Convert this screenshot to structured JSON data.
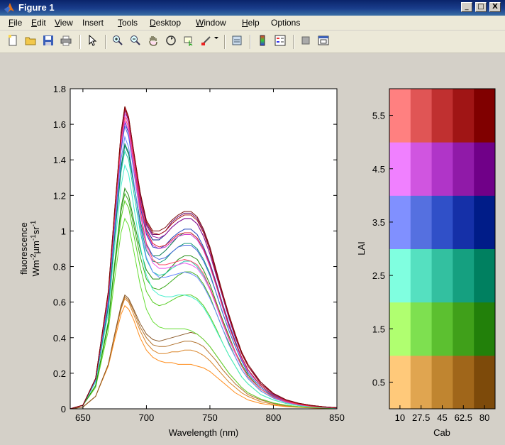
{
  "window": {
    "title": "Figure 1",
    "controls": [
      "_",
      "□",
      "X"
    ]
  },
  "menu": [
    {
      "label": "File",
      "u": "F",
      "rest": "ile"
    },
    {
      "label": "Edit",
      "u": "E",
      "rest": "dit"
    },
    {
      "label": "View",
      "u": "V",
      "rest": "iew"
    },
    {
      "label": "Insert",
      "u": "",
      "rest": "Insert"
    },
    {
      "label": "Tools",
      "u": "T",
      "rest": "ools"
    },
    {
      "label": "Desktop",
      "u": "D",
      "rest": "esktop"
    },
    {
      "label": "Window",
      "u": "W",
      "rest": "indow"
    },
    {
      "label": "Help",
      "u": "H",
      "rest": "elp"
    },
    {
      "label": "Options",
      "u": "",
      "rest": "Options"
    }
  ],
  "toolbar": [
    "new-file-icon",
    "open-folder-icon",
    "save-icon",
    "print-icon",
    "pointer-icon",
    "zoom-in-icon",
    "zoom-out-icon",
    "pan-hand-icon",
    "rotate-3d-icon",
    "data-cursor-icon",
    "brush-icon",
    "dropdown-arrow-icon",
    "link-plot-icon",
    "colorbar-icon",
    "legend-icon",
    "hide-plot-tools-icon",
    "show-plot-tools-icon"
  ],
  "chart_data": [
    {
      "type": "line",
      "xlabel": "Wavelength (nm)",
      "ylabel_line1": "fluorescence",
      "ylabel_line2": "Wm-2µm-1sr-1",
      "xlim": [
        640,
        850
      ],
      "ylim": [
        0,
        1.8
      ],
      "xticks": [
        "650",
        "700",
        "750",
        "800",
        "850"
      ],
      "yticks": [
        "0",
        "0.2",
        "0.4",
        "0.6",
        "0.8",
        "1",
        "1.2",
        "1.4",
        "1.6",
        "1.8"
      ],
      "x": [
        640,
        650,
        660,
        670,
        675,
        680,
        683,
        686,
        690,
        695,
        700,
        705,
        710,
        715,
        720,
        725,
        730,
        735,
        740,
        745,
        750,
        755,
        760,
        765,
        770,
        775,
        780,
        790,
        800,
        810,
        820,
        830,
        840,
        850
      ],
      "series": [
        {
          "values": [
            0,
            0.01,
            0.07,
            0.24,
            0.39,
            0.53,
            0.58,
            0.56,
            0.5,
            0.4,
            0.33,
            0.29,
            0.27,
            0.26,
            0.26,
            0.25,
            0.25,
            0.25,
            0.24,
            0.23,
            0.21,
            0.18,
            0.15,
            0.12,
            0.09,
            0.07,
            0.05,
            0.03,
            0.02,
            0.012,
            0.008,
            0.005,
            0.003,
            0.002
          ],
          "color": "#ff8c1a"
        },
        {
          "values": [
            0,
            0.01,
            0.07,
            0.25,
            0.41,
            0.56,
            0.62,
            0.6,
            0.53,
            0.44,
            0.37,
            0.33,
            0.31,
            0.31,
            0.32,
            0.32,
            0.33,
            0.33,
            0.32,
            0.3,
            0.27,
            0.23,
            0.19,
            0.15,
            0.12,
            0.09,
            0.07,
            0.04,
            0.025,
            0.015,
            0.009,
            0.006,
            0.004,
            0.002
          ],
          "color": "#d98326"
        },
        {
          "values": [
            0,
            0.01,
            0.07,
            0.25,
            0.42,
            0.57,
            0.63,
            0.61,
            0.55,
            0.46,
            0.4,
            0.36,
            0.35,
            0.35,
            0.36,
            0.37,
            0.38,
            0.38,
            0.37,
            0.35,
            0.31,
            0.27,
            0.22,
            0.18,
            0.14,
            0.11,
            0.08,
            0.05,
            0.03,
            0.018,
            0.011,
            0.007,
            0.004,
            0.002
          ],
          "color": "#b0702a"
        },
        {
          "values": [
            0,
            0.01,
            0.07,
            0.25,
            0.42,
            0.58,
            0.64,
            0.62,
            0.56,
            0.48,
            0.42,
            0.39,
            0.38,
            0.39,
            0.4,
            0.41,
            0.42,
            0.43,
            0.42,
            0.39,
            0.35,
            0.3,
            0.25,
            0.2,
            0.16,
            0.12,
            0.09,
            0.055,
            0.033,
            0.02,
            0.012,
            0.008,
            0.005,
            0.003
          ],
          "color": "#8a5a2a"
        },
        {
          "values": [
            0,
            0.02,
            0.12,
            0.44,
            0.73,
            0.99,
            1.07,
            1.03,
            0.89,
            0.7,
            0.56,
            0.49,
            0.46,
            0.45,
            0.45,
            0.45,
            0.45,
            0.44,
            0.42,
            0.39,
            0.35,
            0.3,
            0.25,
            0.2,
            0.16,
            0.12,
            0.09,
            0.055,
            0.033,
            0.02,
            0.012,
            0.008,
            0.005,
            0.003
          ],
          "color": "#66dd33"
        },
        {
          "values": [
            0,
            0.02,
            0.13,
            0.47,
            0.79,
            1.07,
            1.17,
            1.13,
            0.98,
            0.8,
            0.66,
            0.6,
            0.58,
            0.59,
            0.61,
            0.63,
            0.64,
            0.64,
            0.62,
            0.58,
            0.52,
            0.45,
            0.37,
            0.3,
            0.24,
            0.18,
            0.14,
            0.08,
            0.05,
            0.03,
            0.018,
            0.011,
            0.007,
            0.004
          ],
          "color": "#55cc22"
        },
        {
          "values": [
            0,
            0.02,
            0.13,
            0.48,
            0.81,
            1.11,
            1.21,
            1.17,
            1.03,
            0.86,
            0.73,
            0.68,
            0.67,
            0.69,
            0.72,
            0.75,
            0.77,
            0.77,
            0.75,
            0.7,
            0.63,
            0.54,
            0.45,
            0.37,
            0.29,
            0.22,
            0.17,
            0.1,
            0.06,
            0.036,
            0.022,
            0.013,
            0.008,
            0.005
          ],
          "color": "#3aaa1a"
        },
        {
          "values": [
            0,
            0.02,
            0.13,
            0.49,
            0.82,
            1.13,
            1.24,
            1.2,
            1.06,
            0.9,
            0.78,
            0.73,
            0.73,
            0.76,
            0.8,
            0.84,
            0.86,
            0.86,
            0.84,
            0.78,
            0.7,
            0.6,
            0.5,
            0.41,
            0.32,
            0.25,
            0.19,
            0.11,
            0.07,
            0.04,
            0.025,
            0.015,
            0.009,
            0.005
          ],
          "color": "#228b11"
        },
        {
          "values": [
            0,
            0.02,
            0.15,
            0.54,
            0.91,
            1.25,
            1.37,
            1.32,
            1.14,
            0.92,
            0.75,
            0.67,
            0.64,
            0.63,
            0.63,
            0.64,
            0.64,
            0.63,
            0.61,
            0.57,
            0.51,
            0.44,
            0.37,
            0.3,
            0.24,
            0.18,
            0.14,
            0.08,
            0.05,
            0.03,
            0.018,
            0.011,
            0.007,
            0.004
          ],
          "color": "#44eecc"
        },
        {
          "values": [
            0,
            0.02,
            0.16,
            0.57,
            0.96,
            1.33,
            1.45,
            1.4,
            1.22,
            1.0,
            0.84,
            0.77,
            0.75,
            0.76,
            0.79,
            0.81,
            0.83,
            0.83,
            0.8,
            0.75,
            0.68,
            0.58,
            0.48,
            0.39,
            0.31,
            0.24,
            0.18,
            0.11,
            0.065,
            0.038,
            0.023,
            0.014,
            0.008,
            0.005
          ],
          "color": "#22ccaa"
        },
        {
          "values": [
            0,
            0.02,
            0.16,
            0.57,
            0.97,
            1.35,
            1.48,
            1.43,
            1.26,
            1.04,
            0.89,
            0.83,
            0.82,
            0.84,
            0.88,
            0.91,
            0.93,
            0.93,
            0.9,
            0.84,
            0.76,
            0.65,
            0.54,
            0.44,
            0.35,
            0.27,
            0.2,
            0.12,
            0.072,
            0.042,
            0.026,
            0.016,
            0.009,
            0.005
          ],
          "color": "#119977"
        },
        {
          "values": [
            0,
            0.02,
            0.16,
            0.58,
            0.98,
            1.36,
            1.49,
            1.44,
            1.27,
            1.06,
            0.92,
            0.86,
            0.86,
            0.89,
            0.93,
            0.97,
            0.99,
            0.99,
            0.96,
            0.9,
            0.81,
            0.7,
            0.58,
            0.47,
            0.37,
            0.29,
            0.22,
            0.13,
            0.077,
            0.045,
            0.028,
            0.017,
            0.01,
            0.006
          ],
          "color": "#0b7a55"
        },
        {
          "values": [
            0,
            0.02,
            0.16,
            0.6,
            1.01,
            1.4,
            1.53,
            1.47,
            1.28,
            1.03,
            0.85,
            0.77,
            0.74,
            0.74,
            0.75,
            0.76,
            0.77,
            0.76,
            0.74,
            0.69,
            0.62,
            0.54,
            0.45,
            0.36,
            0.29,
            0.22,
            0.17,
            0.1,
            0.06,
            0.035,
            0.021,
            0.013,
            0.008,
            0.005
          ],
          "color": "#6688ff"
        },
        {
          "values": [
            0,
            0.02,
            0.17,
            0.62,
            1.05,
            1.45,
            1.59,
            1.53,
            1.34,
            1.1,
            0.93,
            0.86,
            0.84,
            0.85,
            0.88,
            0.91,
            0.92,
            0.92,
            0.89,
            0.83,
            0.75,
            0.65,
            0.54,
            0.44,
            0.35,
            0.27,
            0.2,
            0.12,
            0.072,
            0.042,
            0.026,
            0.016,
            0.009,
            0.005
          ],
          "color": "#4466dd"
        },
        {
          "values": [
            0,
            0.02,
            0.17,
            0.62,
            1.06,
            1.47,
            1.61,
            1.55,
            1.37,
            1.14,
            0.98,
            0.91,
            0.9,
            0.92,
            0.96,
            0.99,
            1.01,
            1.01,
            0.98,
            0.91,
            0.82,
            0.71,
            0.59,
            0.48,
            0.38,
            0.29,
            0.22,
            0.13,
            0.078,
            0.046,
            0.028,
            0.017,
            0.01,
            0.006
          ],
          "color": "#2244bb"
        },
        {
          "values": [
            0,
            0.02,
            0.17,
            0.63,
            1.07,
            1.48,
            1.62,
            1.56,
            1.38,
            1.16,
            1.01,
            0.95,
            0.95,
            0.98,
            1.02,
            1.05,
            1.07,
            1.07,
            1.04,
            0.97,
            0.87,
            0.75,
            0.63,
            0.51,
            0.4,
            0.31,
            0.24,
            0.14,
            0.083,
            0.049,
            0.03,
            0.018,
            0.011,
            0.006
          ],
          "color": "#0b1f88"
        },
        {
          "values": [
            0,
            0.02,
            0.17,
            0.63,
            1.07,
            1.48,
            1.62,
            1.56,
            1.36,
            1.1,
            0.91,
            0.82,
            0.79,
            0.79,
            0.8,
            0.81,
            0.82,
            0.81,
            0.79,
            0.74,
            0.67,
            0.58,
            0.48,
            0.39,
            0.31,
            0.24,
            0.18,
            0.11,
            0.065,
            0.038,
            0.023,
            0.014,
            0.008,
            0.005
          ],
          "color": "#ee55ee"
        },
        {
          "values": [
            0,
            0.02,
            0.17,
            0.64,
            1.09,
            1.51,
            1.66,
            1.6,
            1.41,
            1.16,
            0.99,
            0.92,
            0.9,
            0.91,
            0.94,
            0.97,
            0.98,
            0.98,
            0.95,
            0.89,
            0.8,
            0.69,
            0.57,
            0.46,
            0.37,
            0.28,
            0.21,
            0.13,
            0.075,
            0.044,
            0.027,
            0.016,
            0.01,
            0.006
          ],
          "color": "#cc33cc"
        },
        {
          "values": [
            0,
            0.02,
            0.17,
            0.65,
            1.1,
            1.53,
            1.68,
            1.62,
            1.43,
            1.2,
            1.03,
            0.97,
            0.96,
            0.98,
            1.02,
            1.05,
            1.07,
            1.07,
            1.04,
            0.97,
            0.87,
            0.75,
            0.63,
            0.51,
            0.4,
            0.31,
            0.24,
            0.14,
            0.083,
            0.049,
            0.03,
            0.018,
            0.011,
            0.006
          ],
          "color": "#991199"
        },
        {
          "values": [
            0,
            0.02,
            0.17,
            0.65,
            1.1,
            1.53,
            1.68,
            1.62,
            1.43,
            1.2,
            1.04,
            0.98,
            0.98,
            1.0,
            1.05,
            1.08,
            1.1,
            1.1,
            1.07,
            1.0,
            0.9,
            0.77,
            0.65,
            0.52,
            0.41,
            0.32,
            0.24,
            0.15,
            0.085,
            0.05,
            0.031,
            0.019,
            0.011,
            0.006
          ],
          "color": "#6a0a6a"
        },
        {
          "values": [
            0,
            0.02,
            0.17,
            0.64,
            1.08,
            1.5,
            1.64,
            1.58,
            1.38,
            1.12,
            0.93,
            0.84,
            0.81,
            0.81,
            0.82,
            0.83,
            0.84,
            0.83,
            0.81,
            0.76,
            0.68,
            0.59,
            0.49,
            0.4,
            0.32,
            0.24,
            0.18,
            0.11,
            0.066,
            0.039,
            0.024,
            0.014,
            0.009,
            0.005
          ],
          "color": "#ff4466"
        },
        {
          "values": [
            0,
            0.02,
            0.17,
            0.65,
            1.11,
            1.54,
            1.69,
            1.63,
            1.43,
            1.18,
            1.0,
            0.93,
            0.91,
            0.92,
            0.95,
            0.98,
            0.99,
            0.99,
            0.96,
            0.9,
            0.81,
            0.7,
            0.58,
            0.47,
            0.37,
            0.29,
            0.22,
            0.13,
            0.076,
            0.045,
            0.027,
            0.016,
            0.01,
            0.006
          ],
          "color": "#dd2233"
        },
        {
          "values": [
            0,
            0.02,
            0.17,
            0.66,
            1.12,
            1.55,
            1.7,
            1.64,
            1.45,
            1.22,
            1.05,
            0.99,
            0.98,
            1.0,
            1.04,
            1.07,
            1.09,
            1.09,
            1.06,
            0.99,
            0.89,
            0.76,
            0.64,
            0.52,
            0.41,
            0.31,
            0.24,
            0.14,
            0.085,
            0.05,
            0.031,
            0.019,
            0.011,
            0.006
          ],
          "color": "#aa1111"
        },
        {
          "values": [
            0,
            0.02,
            0.17,
            0.66,
            1.12,
            1.55,
            1.7,
            1.64,
            1.45,
            1.22,
            1.06,
            1.0,
            1.0,
            1.02,
            1.06,
            1.09,
            1.11,
            1.11,
            1.08,
            1.01,
            0.91,
            0.78,
            0.65,
            0.53,
            0.42,
            0.32,
            0.25,
            0.15,
            0.087,
            0.051,
            0.031,
            0.019,
            0.011,
            0.006
          ],
          "color": "#7a0808"
        }
      ]
    },
    {
      "type": "heatmap",
      "xlabel": "Cab",
      "ylabel": "LAI",
      "xticks": [
        "10",
        "27.5",
        "45",
        "62.5",
        "80"
      ],
      "yticks": [
        "0.5",
        "1.5",
        "2.5",
        "3.5",
        "4.5",
        "5.5"
      ],
      "rows_bottom_to_top": [
        [
          "#ffc97a",
          "#e0a550",
          "#c08530",
          "#a0661a",
          "#7d4a0a"
        ],
        [
          "#b0ff70",
          "#7ee050",
          "#5cc030",
          "#40a01a",
          "#22800a"
        ],
        [
          "#80ffe0",
          "#55e0c0",
          "#33c0a0",
          "#15a080",
          "#008060"
        ],
        [
          "#8090ff",
          "#5570e0",
          "#3050c8",
          "#1530a8",
          "#001c88"
        ],
        [
          "#f080ff",
          "#d055e0",
          "#b035c8",
          "#901aa8",
          "#700088"
        ],
        [
          "#ff8080",
          "#e05555",
          "#c03030",
          "#a01515",
          "#800000"
        ]
      ]
    }
  ]
}
